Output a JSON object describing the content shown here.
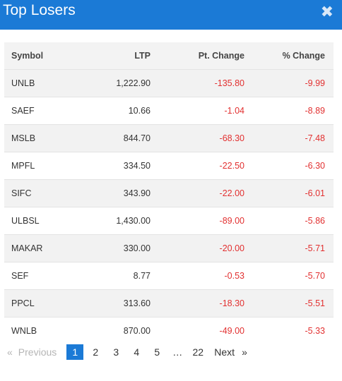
{
  "header": {
    "title": "Top Losers",
    "close_icon": "close-icon",
    "color": "#1b7ad6"
  },
  "table": {
    "columns": [
      "Symbol",
      "LTP",
      "Pt. Change",
      "% Change"
    ],
    "rows": [
      {
        "symbol": "UNLB",
        "ltp": "1,222.90",
        "pt_change": "-135.80",
        "pct_change": "-9.99"
      },
      {
        "symbol": "SAEF",
        "ltp": "10.66",
        "pt_change": "-1.04",
        "pct_change": "-8.89"
      },
      {
        "symbol": "MSLB",
        "ltp": "844.70",
        "pt_change": "-68.30",
        "pct_change": "-7.48"
      },
      {
        "symbol": "MPFL",
        "ltp": "334.50",
        "pt_change": "-22.50",
        "pct_change": "-6.30"
      },
      {
        "symbol": "SIFC",
        "ltp": "343.90",
        "pt_change": "-22.00",
        "pct_change": "-6.01"
      },
      {
        "symbol": "ULBSL",
        "ltp": "1,430.00",
        "pt_change": "-89.00",
        "pct_change": "-5.86"
      },
      {
        "symbol": "MAKAR",
        "ltp": "330.00",
        "pt_change": "-20.00",
        "pct_change": "-5.71"
      },
      {
        "symbol": "SEF",
        "ltp": "8.77",
        "pt_change": "-0.53",
        "pct_change": "-5.70"
      },
      {
        "symbol": "PPCL",
        "ltp": "313.60",
        "pt_change": "-18.30",
        "pct_change": "-5.51"
      },
      {
        "symbol": "WNLB",
        "ltp": "870.00",
        "pt_change": "-49.00",
        "pct_change": "-5.33"
      }
    ],
    "negative_color": "#e23030"
  },
  "pagination": {
    "prev_arrow": "«",
    "prev_label": "Previous",
    "pages": [
      "1",
      "2",
      "3",
      "4",
      "5"
    ],
    "ellipsis": "…",
    "last_page": "22",
    "next_label": "Next",
    "next_arrow": "»",
    "active_page": "1"
  }
}
